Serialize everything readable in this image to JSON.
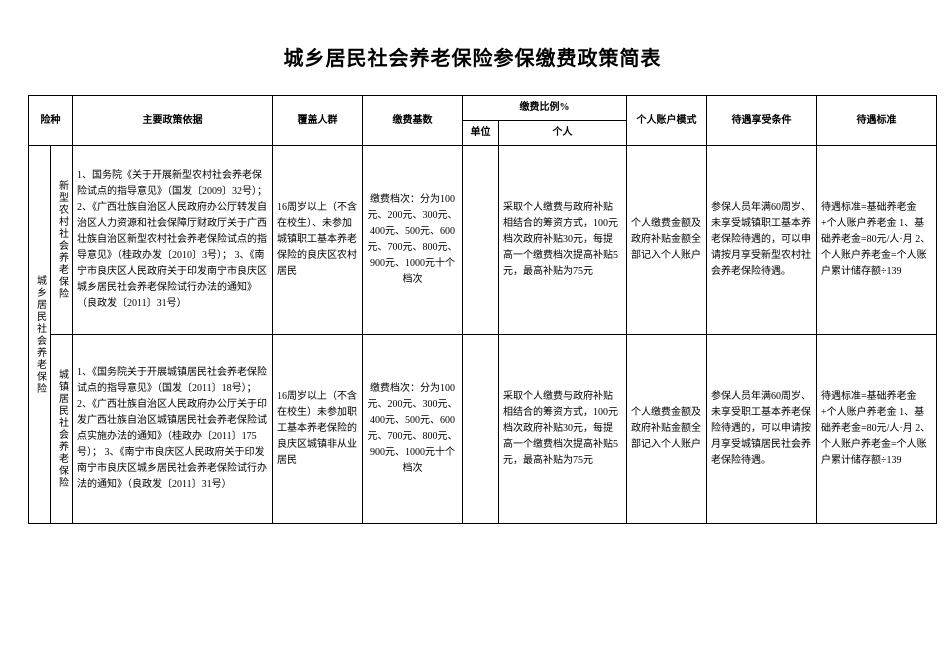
{
  "title": "城乡居民社会养老保险参保缴费政策简表",
  "headers": {
    "type": "险种",
    "basis": "主要政策依据",
    "coverage": "覆盖人群",
    "base": "缴费基数",
    "ratio_group": "缴费比例%",
    "ratio_unit": "单位",
    "ratio_indiv": "个人",
    "account": "个人账户模式",
    "condition": "待遇享受条件",
    "standard": "待遇标准"
  },
  "category": "城乡居民社会养老保险",
  "rows": [
    {
      "subtype": "新型农村社会养老保险",
      "basis": "1、国务院《关于开展新型农村社会养老保险试点的指导意见》（国发〔2009〕32号）；\n2、《广西壮族自治区人民政府办公厅转发自治区人力资源和社会保障厅财政厅关于广西壮族自治区新型农村社会养老保险试点的指导意见》（桂政办发〔2010〕3号）；\n3、《南宁市良庆区人民政府关于印发南宁市良庆区城乡居民社会养老保险试行办法的通知》（良政发〔2011〕31号）",
      "coverage": "16周岁以上（不含在校生）、未参加城镇职工基本养老保险的良庆区农村居民",
      "base": "缴费档次：分为100元、200元、300元、400元、500元、600元、700元、800元、900元、1000元十个档次",
      "ratio_unit": "",
      "ratio_indiv": "采取个人缴费与政府补贴相结合的筹资方式，100元档次政府补贴30元，每提高一个缴费档次提高补贴5元，最高补贴为75元",
      "account": "个人缴费金额及政府补贴金额全部记入个人账户",
      "condition": "参保人员年满60周岁、未享受城镇职工基本养老保险待遇的，可以申请按月享受新型农村社会养老保险待遇。",
      "standard": "待遇标准=基础养老金+个人账户养老金\n1、基础养老金=80元/人·月\n2、个人账户养老金=个人账户累计储存额÷139"
    },
    {
      "subtype": "城镇居民社会养老保险",
      "basis": "1、《国务院关于开展城镇居民社会养老保险试点的指导意见》（国发〔2011〕18号）；\n2、《广西壮族自治区人民政府办公厅关于印发广西壮族自治区城镇居民社会养老保险试点实施办法的通知》（桂政办〔2011〕175号）；\n3、《南宁市良庆区人民政府关于印发南宁市良庆区城乡居民社会养老保险试行办法的通知》（良政发〔2011〕31号）",
      "coverage": "16周岁以上（不含在校生）未参加职工基本养老保险的良庆区城镇非从业居民",
      "base": "缴费档次：分为100元、200元、300元、400元、500元、600元、700元、800元、900元、1000元十个档次",
      "ratio_unit": "",
      "ratio_indiv": "采取个人缴费与政府补贴相结合的筹资方式，100元档次政府补贴30元，每提高一个缴费档次提高补贴5元，最高补贴为75元",
      "account": "个人缴费金额及政府补贴金额全部记入个人账户",
      "condition": "参保人员年满60周岁、未享受职工基本养老保险待遇的，可以申请按月享受城镇居民社会养老保险待遇。",
      "standard": "待遇标准=基础养老金+个人账户养老金\n1、基础养老金=80元/人·月\n2、个人账户养老金=个人账户累计储存额÷139"
    }
  ]
}
